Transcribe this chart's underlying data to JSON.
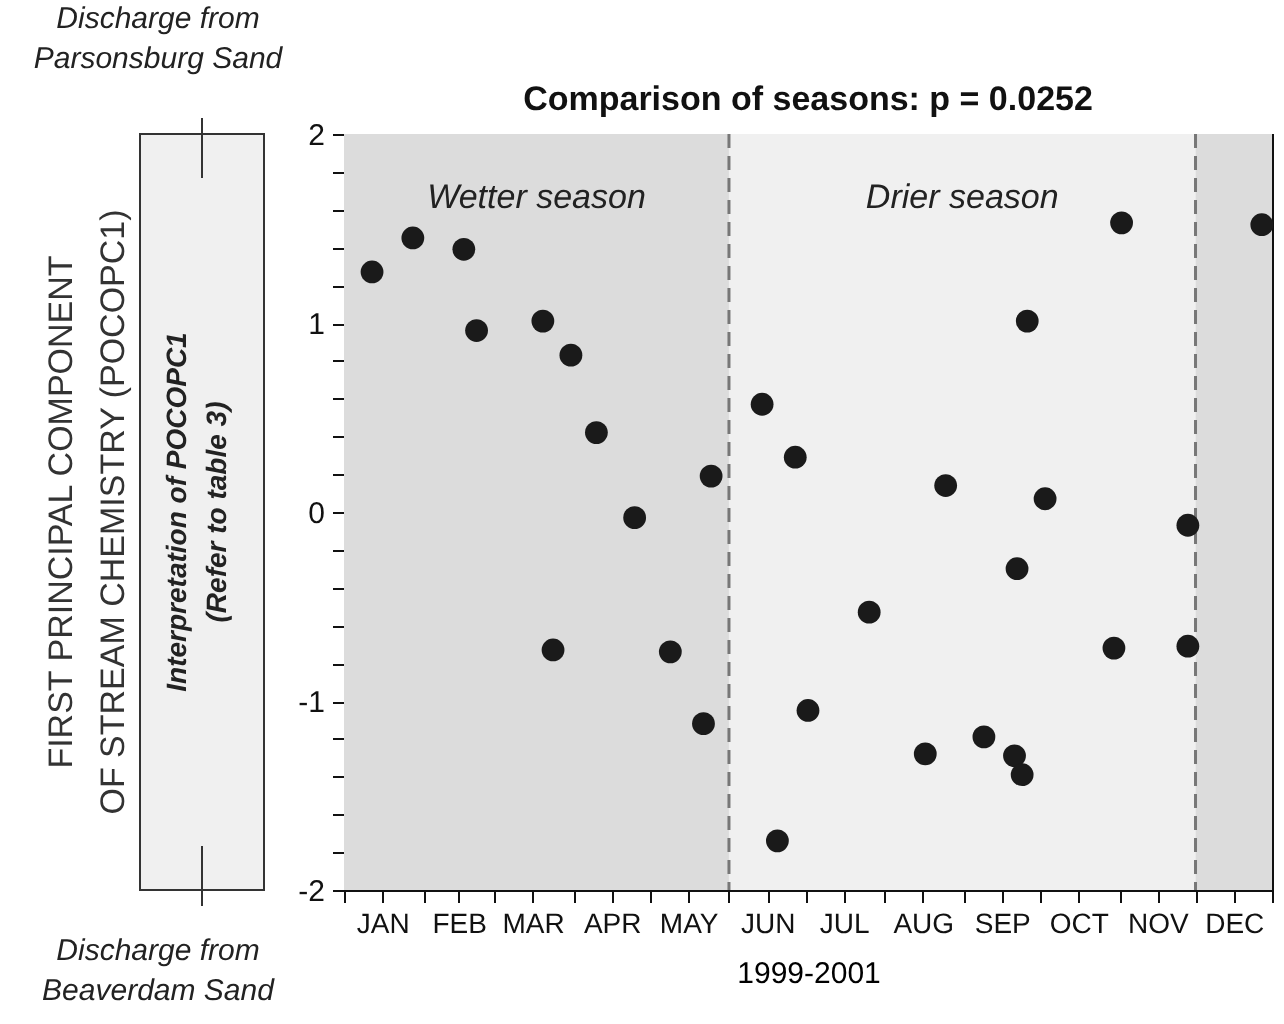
{
  "chart_data": {
    "type": "scatter",
    "title": "Comparison of seasons: p = 0.0252",
    "xlabel": "1999-2001",
    "x": [
      "--01-12",
      "--01-28",
      "--02-17",
      "--02-22",
      "--03-20",
      "--03-31",
      "--04-10",
      "--05-25",
      "--04-25",
      "--03-24",
      "--05-09",
      "--05-22",
      "--11-02",
      "--12-27",
      "--09-26",
      "--06-14",
      "--06-27",
      "--08-25",
      "--10-03",
      "--11-28",
      "--09-22",
      "--07-26",
      "--10-30",
      "--11-28",
      "--07-02",
      "--09-09",
      "--08-17",
      "--09-21",
      "--09-24",
      "--06-20"
    ],
    "series": [
      {
        "color": "#1a1a1a",
        "values": [
          1.27,
          1.45,
          1.39,
          0.96,
          1.01,
          0.83,
          0.42,
          0.19,
          -0.03,
          -0.73,
          -0.74,
          -1.12,
          1.53,
          1.52,
          1.01,
          0.57,
          0.29,
          0.14,
          0.07,
          -0.07,
          -0.3,
          -0.53,
          -0.72,
          -0.71,
          -1.05,
          -1.19,
          -1.28,
          -1.29,
          -1.39,
          -1.74
        ]
      }
    ],
    "xlim": [
      "--01-01",
      "--12-31"
    ],
    "xticks": [
      {
        "value": "--01-01",
        "label": null
      },
      {
        "value": "--01-16",
        "label": "JAN"
      },
      {
        "value": "--02-01",
        "label": null
      },
      {
        "value": "--02-15",
        "label": "FEB"
      },
      {
        "value": "--03-01",
        "label": null
      },
      {
        "value": "--03-16",
        "label": "MAR"
      },
      {
        "value": "--04-01",
        "label": null
      },
      {
        "value": "--04-16",
        "label": "APR"
      },
      {
        "value": "--05-01",
        "label": null
      },
      {
        "value": "--05-16",
        "label": "MAY"
      },
      {
        "value": "--06-01",
        "label": null
      },
      {
        "value": "--06-16",
        "label": "JUN"
      },
      {
        "value": "--07-01",
        "label": null
      },
      {
        "value": "--07-16",
        "label": "JUL"
      },
      {
        "value": "--08-01",
        "label": null
      },
      {
        "value": "--08-16",
        "label": "AUG"
      },
      {
        "value": "--09-01",
        "label": null
      },
      {
        "value": "--09-16",
        "label": "SEP"
      },
      {
        "value": "--10-01",
        "label": null
      },
      {
        "value": "--10-16",
        "label": "OCT"
      },
      {
        "value": "--11-01",
        "label": null
      },
      {
        "value": "--11-16",
        "label": "NOV"
      },
      {
        "value": "--12-01",
        "label": null
      },
      {
        "value": "--12-16",
        "label": "DEC"
      },
      {
        "value": "--12-31",
        "label": null
      }
    ],
    "ylim": [
      -2,
      2
    ],
    "yticks": [
      -2,
      {
        "value": -1.8,
        "label": null
      },
      {
        "value": -1.6,
        "label": null
      },
      {
        "value": -1.4,
        "label": null
      },
      {
        "value": -1.2,
        "label": null
      },
      -1,
      {
        "value": -0.8,
        "label": null
      },
      {
        "value": -0.6,
        "label": null
      },
      {
        "value": -0.4,
        "label": null
      },
      {
        "value": -0.2,
        "label": null
      },
      0,
      {
        "value": 0.2,
        "label": null
      },
      {
        "value": 0.4,
        "label": null
      },
      {
        "value": 0.6,
        "label": null
      },
      {
        "value": 0.8,
        "label": null
      },
      1,
      {
        "value": 1.2,
        "label": null
      },
      {
        "value": 1.4,
        "label": null
      },
      {
        "value": 1.6,
        "label": null
      },
      {
        "value": 1.8,
        "label": null
      },
      2
    ],
    "bands": [
      {
        "axis": "x",
        "from": "--01-01",
        "to": "--06-01",
        "label": "Wetter season",
        "color": "#dcdcdc"
      },
      {
        "axis": "x",
        "from": "--06-01",
        "to": "--12-01",
        "label": "Drier season",
        "color": "#f0f0f0"
      },
      {
        "axis": "x",
        "from": "--12-01",
        "to": "--12-31",
        "color": "#dcdcdc"
      }
    ],
    "ref_lines": [
      {
        "axis": "x",
        "value": "--06-01",
        "line_style": "dashed",
        "color": "#777777"
      },
      {
        "axis": "x",
        "value": "--12-01",
        "line_style": "dashed",
        "color": "#777777"
      }
    ],
    "annotations": [
      "Interpretation of POCOPC1",
      "(Refer to table 3)",
      "Discharge from\nParsonsburg Sand",
      "Discharge from\nBeaverdam Sand",
      "FIRST PRINCIPAL COMPONENT OF STREAM CHEMISTRY (POCOPC1)"
    ],
    "marker": "circle",
    "grid": false,
    "legend": false
  }
}
